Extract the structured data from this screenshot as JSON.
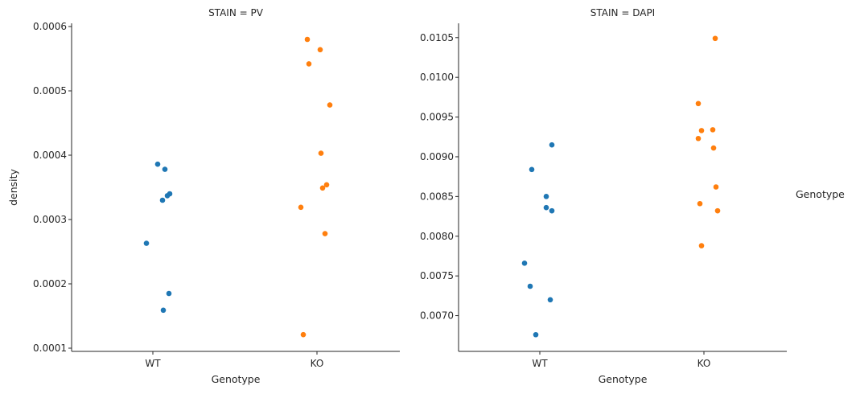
{
  "chart_data": [
    {
      "type": "scatter",
      "title": "STAIN = PV",
      "xlabel": "Genotype",
      "ylabel": "density",
      "categories": [
        "WT",
        "KO"
      ],
      "ylim": [
        9.5e-05,
        0.000605
      ],
      "yticks": [
        "0.0001",
        "0.0002",
        "0.0003",
        "0.0004",
        "0.0005",
        "0.0006"
      ],
      "ytick_values": [
        0.0001,
        0.0002,
        0.0003,
        0.0004,
        0.0005,
        0.0006
      ],
      "series": [
        {
          "category": "WT",
          "color": "#1f77b4",
          "values": [
            0.000386,
            0.000378,
            0.00034,
            0.000337,
            0.00033,
            0.000263,
            0.000185,
            0.000159
          ]
        },
        {
          "category": "KO",
          "color": "#ff7f0e",
          "values": [
            0.00058,
            0.000564,
            0.000542,
            0.000478,
            0.000403,
            0.000354,
            0.000349,
            0.000319,
            0.000278,
            0.000121
          ]
        }
      ]
    },
    {
      "type": "scatter",
      "title": "STAIN = DAPI",
      "xlabel": "Genotype",
      "ylabel": "",
      "categories": [
        "WT",
        "KO"
      ],
      "ylim": [
        0.00655,
        0.01068
      ],
      "yticks": [
        "0.0070",
        "0.0075",
        "0.0080",
        "0.0085",
        "0.0090",
        "0.0095",
        "0.0100",
        "0.0105"
      ],
      "ytick_values": [
        0.007,
        0.0075,
        0.008,
        0.0085,
        0.009,
        0.0095,
        0.01,
        0.0105
      ],
      "series": [
        {
          "category": "WT",
          "color": "#1f77b4",
          "values": [
            0.00915,
            0.00884,
            0.0085,
            0.00836,
            0.00832,
            0.00766,
            0.00737,
            0.0072,
            0.00676
          ]
        },
        {
          "category": "KO",
          "color": "#ff7f0e",
          "values": [
            0.01049,
            0.00967,
            0.00934,
            0.00933,
            0.00923,
            0.00911,
            0.00862,
            0.00841,
            0.00832,
            0.00788
          ]
        }
      ]
    }
  ],
  "legend": {
    "title": "Genotype",
    "placement": "right"
  }
}
